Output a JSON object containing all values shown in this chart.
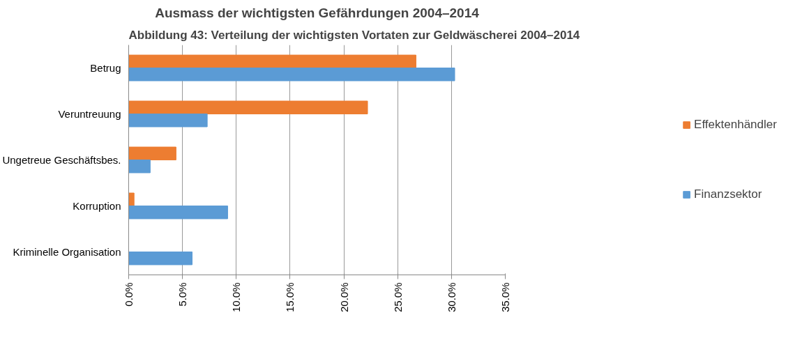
{
  "chart_data": {
    "type": "bar",
    "orientation": "horizontal",
    "title": "Ausmass der wichtigsten Gefährdungen 2004–2014",
    "annotations": [
      "Abbildung 43: Verteilung der wichtigsten Vortaten zur Geldwäscherei 2004–2014"
    ],
    "categories": [
      "Betrug",
      "Veruntreuung",
      "Ungetreue Geschäftsbes.",
      "Korruption",
      "Kriminelle Organisation"
    ],
    "series": [
      {
        "name": "Effektenhändler",
        "color": "#ed7d31",
        "values": [
          26.7,
          22.2,
          4.4,
          0.5,
          null
        ]
      },
      {
        "name": "Finanzsektor",
        "color": "#5b9bd5",
        "values": [
          30.3,
          7.3,
          2.0,
          9.2,
          5.9
        ]
      }
    ],
    "xlim": [
      0,
      35
    ],
    "xticks": [
      {
        "value": 0,
        "label": "0.0%"
      },
      {
        "value": 5,
        "label": "5.0%"
      },
      {
        "value": 10,
        "label": "10.0%"
      },
      {
        "value": 15,
        "label": "15.0%"
      },
      {
        "value": 20,
        "label": "20.0%"
      },
      {
        "value": 25,
        "label": "25.0%"
      },
      {
        "value": 30,
        "label": "30.0%"
      },
      {
        "value": 35,
        "label": "35.0%"
      }
    ],
    "grid": "x",
    "legend": "right"
  }
}
